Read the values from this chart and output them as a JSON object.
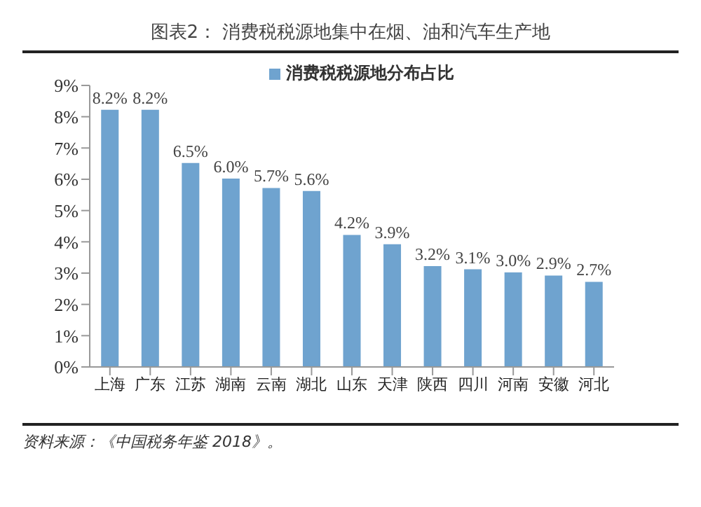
{
  "chart_data": {
    "type": "bar",
    "title": "图表2： 消费税税源地集中在烟、油和汽车生产地",
    "categories": [
      "上海",
      "广东",
      "江苏",
      "湖南",
      "云南",
      "湖北",
      "山东",
      "天津",
      "陕西",
      "四川",
      "河南",
      "安徽",
      "河北"
    ],
    "series": [
      {
        "name": "消费税税源地分布占比",
        "color": "#6fa3cf",
        "values": [
          8.2,
          8.2,
          6.5,
          6.0,
          5.7,
          5.6,
          4.2,
          3.9,
          3.2,
          3.1,
          3.0,
          2.9,
          2.7
        ],
        "value_labels": [
          "8.2%",
          "8.2%",
          "6.5%",
          "6.0%",
          "5.7%",
          "5.6%",
          "4.2%",
          "3.9%",
          "3.2%",
          "3.1%",
          "3.0%",
          "2.9%",
          "2.7%"
        ]
      }
    ],
    "ylim": [
      0,
      9
    ],
    "yticks": [
      {
        "value": 0,
        "label": "0%"
      },
      {
        "value": 1,
        "label": "1%"
      },
      {
        "value": 2,
        "label": "2%"
      },
      {
        "value": 3,
        "label": "3%"
      },
      {
        "value": 4,
        "label": "4%"
      },
      {
        "value": 5,
        "label": "5%"
      },
      {
        "value": 6,
        "label": "6%"
      },
      {
        "value": 7,
        "label": "7%"
      },
      {
        "value": 8,
        "label": "8%"
      },
      {
        "value": 9,
        "label": "9%"
      }
    ],
    "grid": false,
    "legend": "top",
    "annotations": [
      "资料来源：《中国税务年鉴 2018》。"
    ]
  }
}
